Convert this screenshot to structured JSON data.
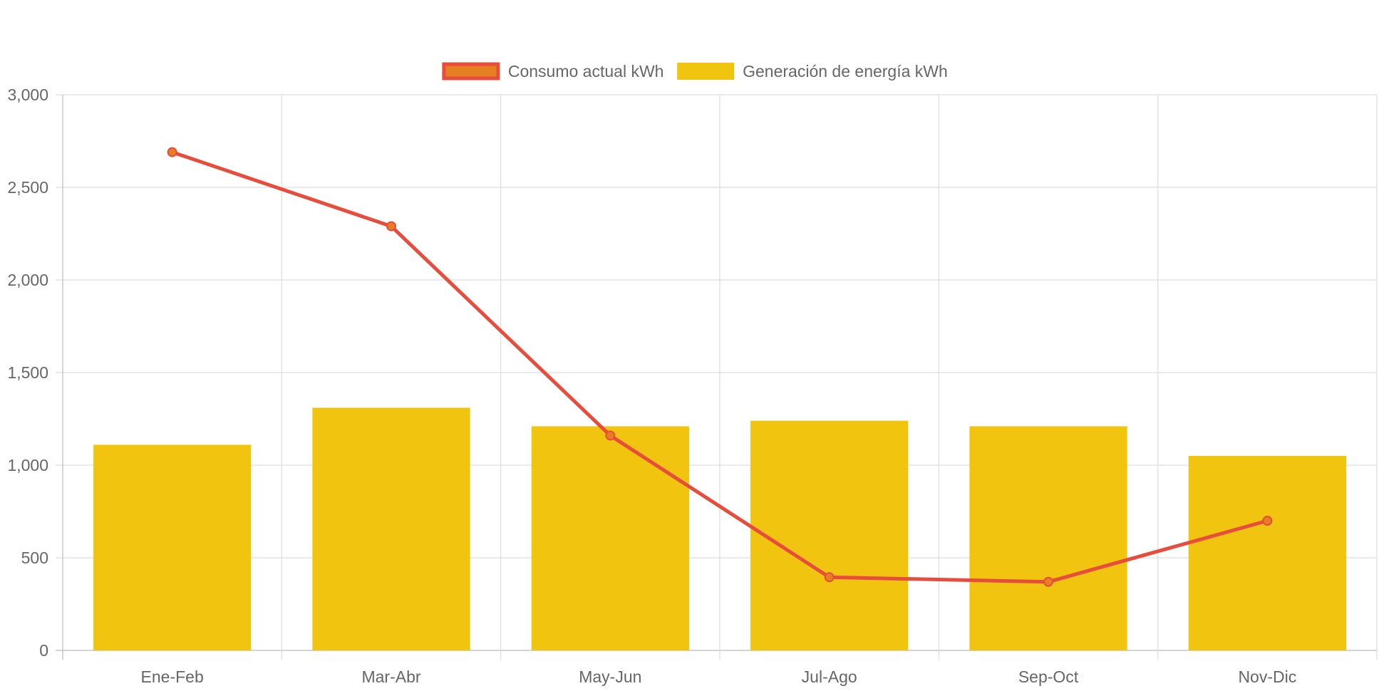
{
  "chart_data": {
    "type": "bar",
    "title": "",
    "xlabel": "",
    "ylabel": "",
    "categories": [
      "Ene-Feb",
      "Mar-Abr",
      "May-Jun",
      "Jul-Ago",
      "Sep-Oct",
      "Nov-Dic"
    ],
    "ylim": [
      0,
      3000
    ],
    "yticks": [
      0,
      500,
      1000,
      1500,
      2000,
      2500,
      3000
    ],
    "ytick_labels": [
      "0",
      "500",
      "1,000",
      "1,500",
      "2,000",
      "2,500",
      "3,000"
    ],
    "grid": true,
    "legend_position": "top-center",
    "series": [
      {
        "name": "Consumo actual kWh",
        "type": "line",
        "values": [
          2690,
          2290,
          1160,
          395,
          370,
          700
        ],
        "color": "#e74c3c",
        "point_color": "#e67e22"
      },
      {
        "name": "Generación de energía kWh",
        "type": "bar",
        "values": [
          1110,
          1310,
          1210,
          1240,
          1210,
          1050
        ],
        "color": "#f1c40f"
      }
    ]
  }
}
